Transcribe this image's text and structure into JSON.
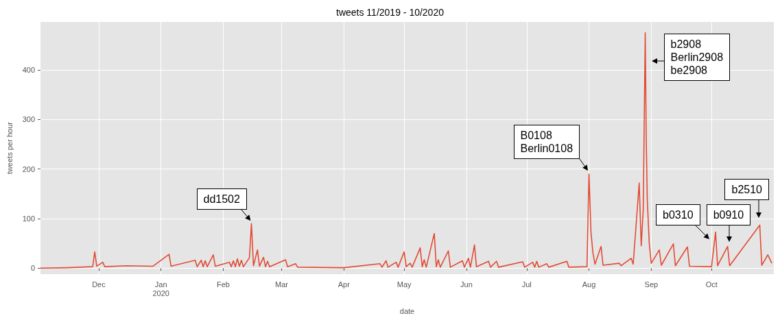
{
  "chart_data": {
    "type": "line",
    "title": "tweets 11/2019 - 10/2020",
    "xlabel": "date",
    "ylabel": "tweets per hour",
    "xlim": [
      "2019-11-02",
      "2020-11-01"
    ],
    "xticks": [
      {
        "value": "2019-12-01",
        "label": "Dec"
      },
      {
        "value": "2020-01-01",
        "label": "Jan\n2020"
      },
      {
        "value": "2020-02-01",
        "label": "Feb"
      },
      {
        "value": "2020-03-01",
        "label": "Mar"
      },
      {
        "value": "2020-04-01",
        "label": "Apr"
      },
      {
        "value": "2020-05-01",
        "label": "May"
      },
      {
        "value": "2020-06-01",
        "label": "Jun"
      },
      {
        "value": "2020-07-01",
        "label": "Jul"
      },
      {
        "value": "2020-08-01",
        "label": "Aug"
      },
      {
        "value": "2020-09-01",
        "label": "Sep"
      },
      {
        "value": "2020-10-01",
        "label": "Oct"
      }
    ],
    "ylim": [
      -12,
      497
    ],
    "yticks": [
      0,
      100,
      200,
      300,
      400
    ],
    "grid": true,
    "marker": "none",
    "line_style": "solid",
    "x": [
      "2019-11-02",
      "2019-11-15",
      "2019-11-28",
      "2019-11-29",
      "2019-11-30",
      "2019-12-03",
      "2019-12-04",
      "2019-12-15",
      "2019-12-28",
      "2020-01-05",
      "2020-01-06",
      "2020-01-18",
      "2020-01-19",
      "2020-01-21",
      "2020-01-22",
      "2020-01-23",
      "2020-01-24",
      "2020-01-27",
      "2020-01-28",
      "2020-02-04",
      "2020-02-05",
      "2020-02-06",
      "2020-02-07",
      "2020-02-08",
      "2020-02-09",
      "2020-02-10",
      "2020-02-11",
      "2020-02-14",
      "2020-02-15",
      "2020-02-16",
      "2020-02-18",
      "2020-02-19",
      "2020-02-21",
      "2020-02-22",
      "2020-02-23",
      "2020-02-24",
      "2020-03-03",
      "2020-03-04",
      "2020-03-08",
      "2020-03-09",
      "2020-04-01",
      "2020-04-19",
      "2020-04-20",
      "2020-04-22",
      "2020-04-23",
      "2020-04-27",
      "2020-04-28",
      "2020-05-01",
      "2020-05-02",
      "2020-05-04",
      "2020-05-05",
      "2020-05-09",
      "2020-05-10",
      "2020-05-11",
      "2020-05-12",
      "2020-05-16",
      "2020-05-17",
      "2020-05-18",
      "2020-05-19",
      "2020-05-23",
      "2020-05-24",
      "2020-05-30",
      "2020-05-31",
      "2020-06-02",
      "2020-06-03",
      "2020-06-05",
      "2020-06-06",
      "2020-06-12",
      "2020-06-13",
      "2020-06-16",
      "2020-06-17",
      "2020-06-29",
      "2020-06-30",
      "2020-07-04",
      "2020-07-05",
      "2020-07-06",
      "2020-07-07",
      "2020-07-11",
      "2020-07-12",
      "2020-07-21",
      "2020-07-22",
      "2020-07-31",
      "2020-08-01",
      "2020-08-02",
      "2020-08-03",
      "2020-08-04",
      "2020-08-07",
      "2020-08-08",
      "2020-08-16",
      "2020-08-17",
      "2020-08-22",
      "2020-08-23",
      "2020-08-26",
      "2020-08-27",
      "2020-08-28",
      "2020-08-29",
      "2020-08-29T12:00",
      "2020-08-30",
      "2020-08-31",
      "2020-09-01",
      "2020-09-05",
      "2020-09-06",
      "2020-09-12",
      "2020-09-13",
      "2020-09-19",
      "2020-09-20",
      "2020-10-01",
      "2020-10-03",
      "2020-10-04",
      "2020-10-09",
      "2020-10-10",
      "2020-10-25",
      "2020-10-26",
      "2020-10-29",
      "2020-10-31"
    ],
    "series": [
      {
        "color": "#e24a33",
        "values": [
          0,
          1,
          3,
          33,
          4,
          12,
          3,
          5,
          4,
          28,
          4,
          16,
          3,
          16,
          3,
          15,
          3,
          27,
          4,
          12,
          3,
          15,
          3,
          19,
          4,
          16,
          3,
          21,
          90,
          5,
          37,
          4,
          22,
          3,
          14,
          3,
          17,
          3,
          9,
          2,
          1,
          9,
          2,
          15,
          2,
          12,
          2,
          33,
          3,
          10,
          2,
          41,
          3,
          17,
          2,
          70,
          3,
          17,
          2,
          35,
          2,
          15,
          2,
          20,
          2,
          47,
          3,
          14,
          2,
          14,
          2,
          13,
          2,
          12,
          2,
          14,
          2,
          9,
          2,
          14,
          2,
          3,
          190,
          72,
          30,
          8,
          44,
          6,
          10,
          5,
          20,
          8,
          172,
          45,
          117,
          475,
          260,
          140,
          50,
          10,
          37,
          6,
          49,
          5,
          43,
          4,
          3,
          73,
          5,
          44,
          5,
          87,
          6,
          27,
          10
        ]
      }
    ],
    "annotations": [
      {
        "text": "dd1502",
        "x": "2020-02-15",
        "y": 90
      },
      {
        "text": "B0108\nBerlin0108",
        "x": "2020-08-01",
        "y": 190
      },
      {
        "text": "b2908\nBerlin2908\nbe2908",
        "x": "2020-08-29",
        "y": 475
      },
      {
        "text": "b0310",
        "x": "2020-10-03",
        "y": 73
      },
      {
        "text": "b0910",
        "x": "2020-10-09",
        "y": 44
      },
      {
        "text": "b2510",
        "x": "2020-10-25",
        "y": 87
      }
    ]
  }
}
